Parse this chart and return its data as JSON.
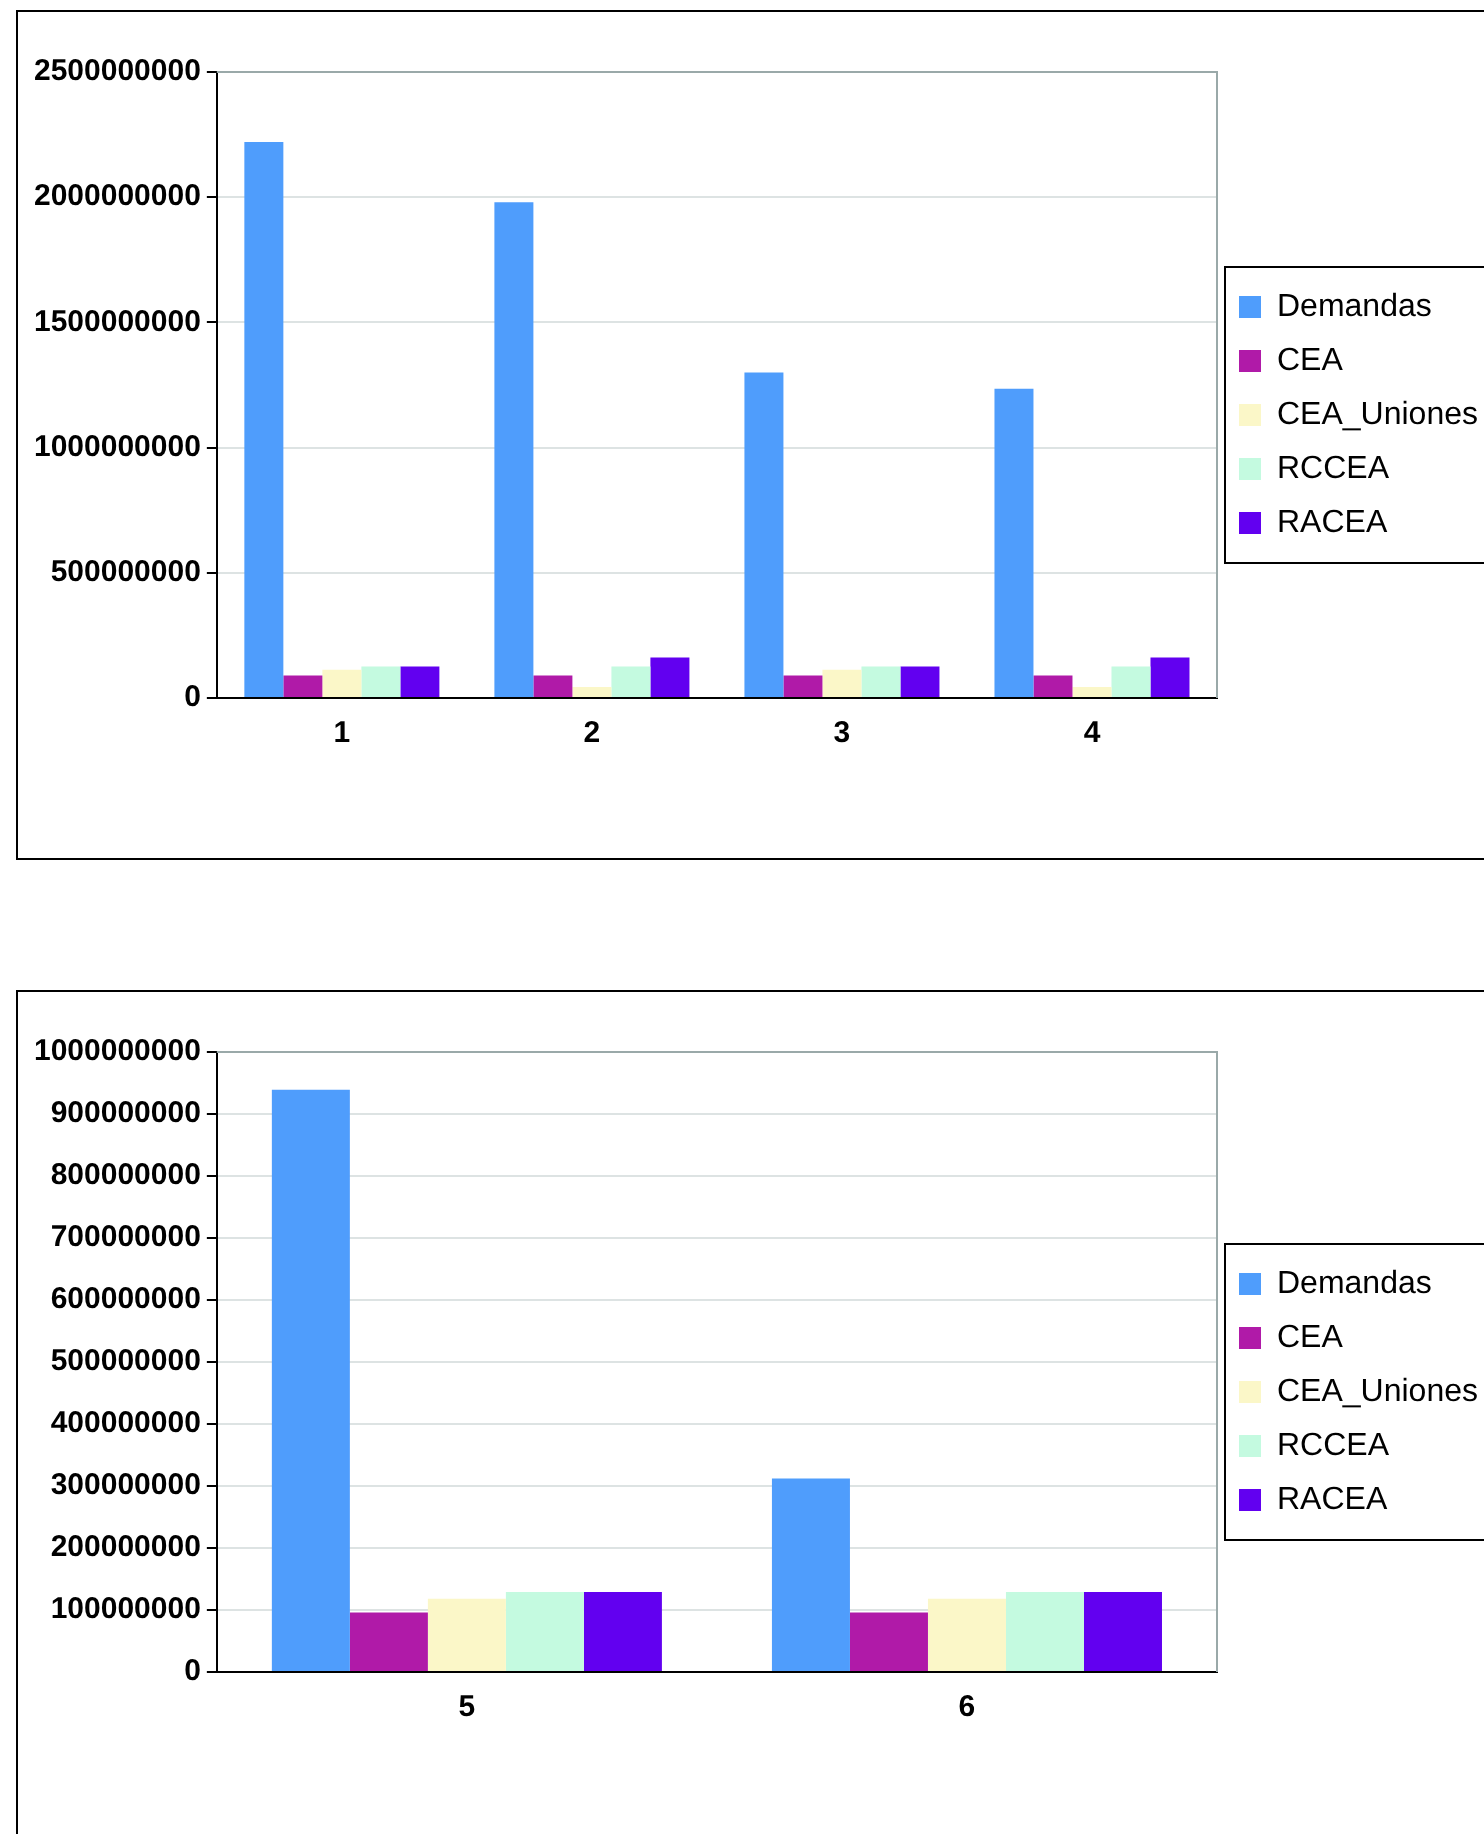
{
  "chart_data": [
    {
      "type": "bar",
      "categories": [
        "1",
        "2",
        "3",
        "4"
      ],
      "series": [
        {
          "name": "Demandas",
          "color": "#4f9dfc",
          "values": [
            2220000000,
            1980000000,
            1300000000,
            1235000000
          ]
        },
        {
          "name": "CEA",
          "color": "#b01aa8",
          "values": [
            90000000,
            90000000,
            90000000,
            90000000
          ]
        },
        {
          "name": "CEA_Uniones",
          "color": "#fbf7c8",
          "values": [
            113000000,
            44000000,
            113000000,
            44000000
          ]
        },
        {
          "name": "RCCEA",
          "color": "#c4fae0",
          "values": [
            126000000,
            126000000,
            126000000,
            126000000
          ]
        },
        {
          "name": "RACEA",
          "color": "#6200f0",
          "values": [
            126000000,
            162000000,
            126000000,
            162000000
          ]
        }
      ],
      "ylim": [
        0,
        2500000000
      ],
      "yticks": [
        0,
        500000000,
        1000000000,
        1500000000,
        2000000000,
        2500000000
      ],
      "grid": "y",
      "legend": "right"
    },
    {
      "type": "bar",
      "categories": [
        "5",
        "6"
      ],
      "series": [
        {
          "name": "Demandas",
          "color": "#4f9dfc",
          "values": [
            939000000,
            312000000
          ]
        },
        {
          "name": "CEA",
          "color": "#b01aa8",
          "values": [
            96000000,
            96000000
          ]
        },
        {
          "name": "CEA_Uniones",
          "color": "#fbf7c8",
          "values": [
            118000000,
            118000000
          ]
        },
        {
          "name": "RCCEA",
          "color": "#c4fae0",
          "values": [
            129000000,
            129000000
          ]
        },
        {
          "name": "RACEA",
          "color": "#6200f0",
          "values": [
            129000000,
            129000000
          ]
        }
      ],
      "ylim": [
        0,
        1000000000
      ],
      "yticks": [
        0,
        100000000,
        200000000,
        300000000,
        400000000,
        500000000,
        600000000,
        700000000,
        800000000,
        900000000,
        1000000000
      ],
      "grid": "y",
      "legend": "right"
    }
  ]
}
